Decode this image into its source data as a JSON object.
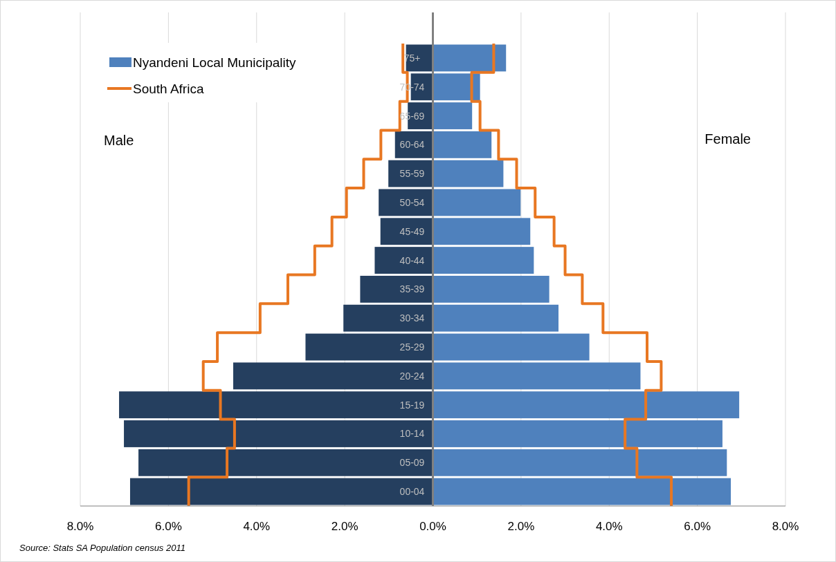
{
  "chart_data": {
    "type": "bar",
    "orientation": "horizontal",
    "categories": [
      "75+",
      "70-74",
      "65-69",
      "60-64",
      "55-59",
      "50-54",
      "45-49",
      "40-44",
      "35-39",
      "30-34",
      "25-29",
      "20-24",
      "15-19",
      "10-14",
      "05-09",
      "00-04"
    ],
    "series": [
      {
        "color": "#253f5f",
        "values": [
          -0.61,
          -0.5,
          -0.57,
          -0.86,
          -1.01,
          -1.23,
          -1.19,
          -1.32,
          -1.65,
          -2.03,
          -2.89,
          -4.53,
          -7.12,
          -7.01,
          -6.68,
          -6.87
        ]
      },
      {
        "name": "Nyandeni Local Municipality",
        "color": "#4f81bd",
        "values": [
          1.66,
          1.07,
          0.89,
          1.33,
          1.6,
          1.99,
          2.21,
          2.29,
          2.64,
          2.85,
          3.55,
          4.71,
          6.95,
          6.57,
          6.67,
          6.76
        ]
      },
      {
        "type": "step",
        "name": "South Africa",
        "color": "#e87722",
        "values": [
          1.38,
          0.88,
          1.07,
          1.49,
          1.9,
          2.32,
          2.75,
          3.0,
          3.39,
          3.86,
          4.86,
          5.18,
          4.83,
          4.36,
          4.63,
          5.41
        ]
      },
      {
        "type": "step",
        "color": "#e87722",
        "values": [
          -0.68,
          -0.58,
          -0.75,
          -1.18,
          -1.57,
          -1.96,
          -2.29,
          -2.68,
          -3.29,
          -3.92,
          -4.89,
          -5.21,
          -4.82,
          -4.5,
          -4.67,
          -5.54
        ]
      }
    ],
    "xlim": [
      -8,
      8
    ],
    "xticks": [
      {
        "value": -8,
        "label": "8.0%"
      },
      {
        "value": -6,
        "label": "6.0%"
      },
      {
        "value": -4,
        "label": "4.0%"
      },
      {
        "value": -2,
        "label": "2.0%"
      },
      {
        "value": 0,
        "label": "0.0%"
      },
      {
        "value": 2,
        "label": "2.0%"
      },
      {
        "value": 4,
        "label": "4.0%"
      },
      {
        "value": 6,
        "label": "6.0%"
      },
      {
        "value": 8,
        "label": "8.0%"
      }
    ],
    "stacked": true,
    "grid": "x",
    "legend": "top left",
    "annotations": [
      "Male",
      "Female",
      "Source: Stats SA Population census 2011"
    ]
  }
}
